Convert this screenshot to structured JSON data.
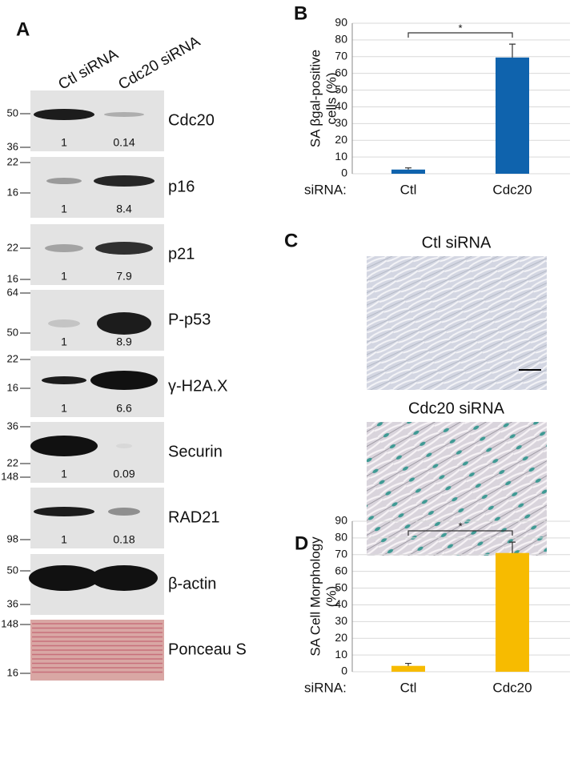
{
  "panel_labels": [
    "A",
    "B",
    "C",
    "D"
  ],
  "blot": {
    "columns": [
      "Ctl siRNA",
      "Cdc20 siRNA"
    ],
    "rows": [
      {
        "protein": "Cdc20",
        "markers": [
          50,
          36
        ],
        "quant": [
          1,
          0.14
        ]
      },
      {
        "protein": "p16",
        "markers": [
          22,
          16
        ],
        "quant": [
          1,
          8.4
        ]
      },
      {
        "protein": "p21",
        "markers": [
          22,
          16
        ],
        "quant": [
          1,
          7.9
        ]
      },
      {
        "protein": "P-p53",
        "markers": [
          64,
          50
        ],
        "quant": [
          1,
          8.9
        ]
      },
      {
        "protein": "γ-H2A.X",
        "markers": [
          22,
          16
        ],
        "quant": [
          1,
          6.6
        ]
      },
      {
        "protein": "Securin",
        "markers": [
          36,
          22
        ],
        "quant": [
          1,
          0.09
        ]
      },
      {
        "protein": "RAD21",
        "markers": [
          148,
          98
        ],
        "quant": [
          1,
          0.18
        ]
      },
      {
        "protein": "β-actin",
        "markers": [
          50,
          36
        ]
      },
      {
        "protein": "Ponceau S",
        "markers": [
          148,
          16
        ]
      }
    ]
  },
  "images": {
    "titles": [
      "Ctl siRNA",
      "Cdc20 siRNA"
    ]
  },
  "chart_data": [
    {
      "type": "bar",
      "ylabel": [
        "SA βgal-positive",
        "cells (%)"
      ],
      "xlabel": "siRNA:",
      "categories": [
        "Ctl",
        "Cdc20"
      ],
      "values": [
        2.5,
        69.5
      ],
      "errors": [
        1,
        8
      ],
      "color": "#0f63ad",
      "significance": "*",
      "ylim": [
        0,
        90
      ],
      "yticks": [
        0,
        10,
        20,
        30,
        40,
        50,
        60,
        70,
        80,
        90
      ],
      "grid": true
    },
    {
      "type": "bar",
      "ylabel": [
        "SA Cell Morphology",
        "(%)"
      ],
      "xlabel": "siRNA:",
      "categories": [
        "Ctl",
        "Cdc20"
      ],
      "values": [
        3.5,
        71
      ],
      "errors": [
        1.5,
        6.5
      ],
      "color": "#f7bb00",
      "significance": "*",
      "ylim": [
        0,
        90
      ],
      "yticks": [
        0,
        10,
        20,
        30,
        40,
        50,
        60,
        70,
        80,
        90
      ],
      "grid": true
    }
  ]
}
